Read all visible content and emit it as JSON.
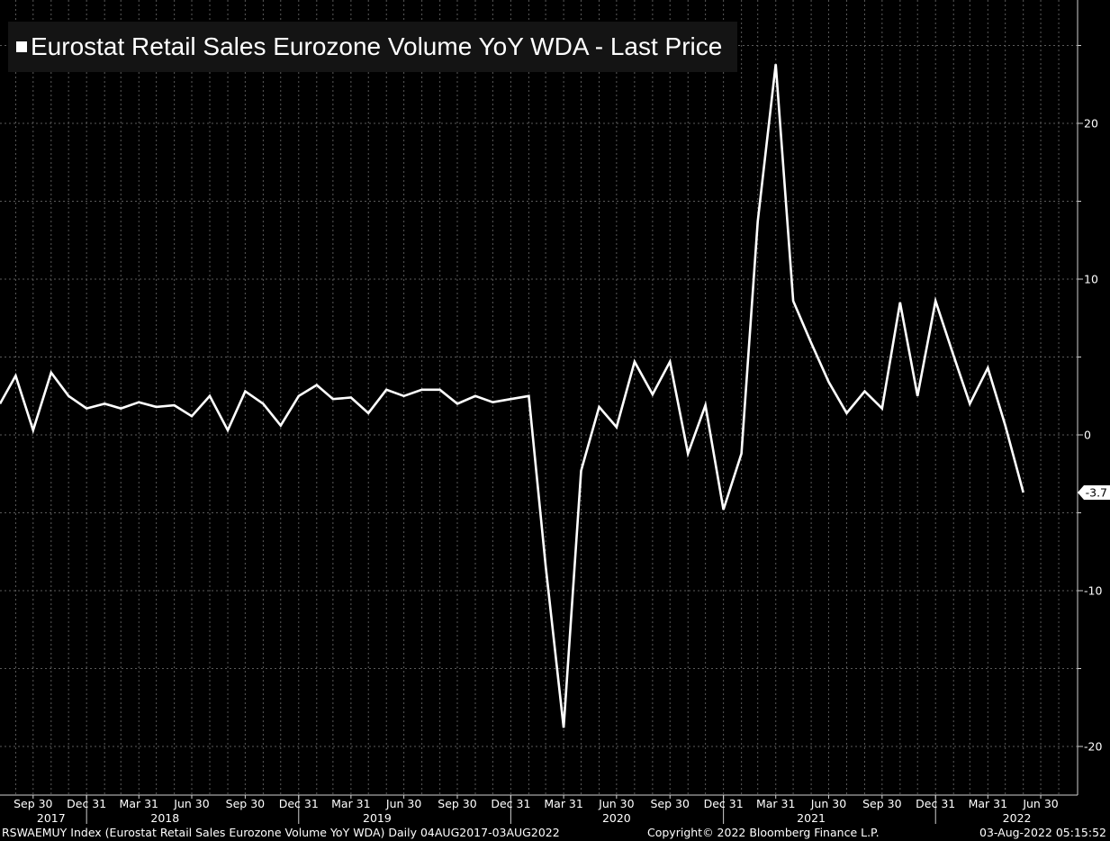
{
  "chart_data": {
    "type": "line",
    "title": "Eurostat Retail Sales Eurozone Volume YoY WDA - Last Price",
    "last_value_label": "-3.7",
    "colors": {
      "background": "#000000",
      "line": "#ffffff",
      "grid": "#5a5a5a"
    },
    "grid": true,
    "legend_position": "top-left",
    "ylim": [
      -23,
      28
    ],
    "y_ticks": [
      {
        "value": 20,
        "label": "20"
      },
      {
        "value": 10,
        "label": "10"
      },
      {
        "value": 0,
        "label": "0"
      },
      {
        "value": -10,
        "label": "-10"
      },
      {
        "value": -20,
        "label": "-20"
      }
    ],
    "y_minor_ticks": [
      25,
      15,
      5,
      -5,
      -15
    ],
    "x_ticks": [
      {
        "label": "Sep 30",
        "date": "2017-09-30"
      },
      {
        "label": "Dec 31",
        "date": "2017-12-31"
      },
      {
        "label": "Mar 31",
        "date": "2018-03-31"
      },
      {
        "label": "Jun 30",
        "date": "2018-06-30"
      },
      {
        "label": "Sep 30",
        "date": "2018-09-30"
      },
      {
        "label": "Dec 31",
        "date": "2018-12-31"
      },
      {
        "label": "Mar 31",
        "date": "2019-03-31"
      },
      {
        "label": "Jun 30",
        "date": "2019-06-30"
      },
      {
        "label": "Sep 30",
        "date": "2019-09-30"
      },
      {
        "label": "Dec 31",
        "date": "2019-12-31"
      },
      {
        "label": "Mar 31",
        "date": "2020-03-31"
      },
      {
        "label": "Jun 30",
        "date": "2020-06-30"
      },
      {
        "label": "Sep 30",
        "date": "2020-09-30"
      },
      {
        "label": "Dec 31",
        "date": "2020-12-31"
      },
      {
        "label": "Mar 31",
        "date": "2021-03-31"
      },
      {
        "label": "Jun 30",
        "date": "2021-06-30"
      },
      {
        "label": "Sep 30",
        "date": "2021-09-30"
      },
      {
        "label": "Dec 31",
        "date": "2021-12-31"
      },
      {
        "label": "Mar 31",
        "date": "2022-03-31"
      },
      {
        "label": "Jun 30",
        "date": "2022-06-30"
      }
    ],
    "year_labels": [
      {
        "label": "2017",
        "date": "2017-10-31"
      },
      {
        "label": "2018",
        "date": "2018-05-15"
      },
      {
        "label": "2019",
        "date": "2019-05-15"
      },
      {
        "label": "2020",
        "date": "2020-06-30"
      },
      {
        "label": "2021",
        "date": "2021-05-31"
      },
      {
        "label": "2022",
        "date": "2022-05-20"
      }
    ],
    "year_separators": [
      "2017-12-31",
      "2018-12-31",
      "2019-12-31",
      "2020-12-31",
      "2021-12-31"
    ],
    "x_range": [
      "2017-08-04",
      "2022-08-03"
    ],
    "series": [
      {
        "name": "Eurostat Retail Sales Eurozone Volume YoY WDA - Last Price",
        "points": [
          [
            "2017-08-04",
            2.0
          ],
          [
            "2017-08-31",
            3.8
          ],
          [
            "2017-09-30",
            0.3
          ],
          [
            "2017-10-31",
            4.0
          ],
          [
            "2017-11-30",
            2.5
          ],
          [
            "2017-12-31",
            1.7
          ],
          [
            "2018-01-31",
            2.0
          ],
          [
            "2018-02-28",
            1.7
          ],
          [
            "2018-03-31",
            2.1
          ],
          [
            "2018-04-30",
            1.8
          ],
          [
            "2018-05-31",
            1.9
          ],
          [
            "2018-06-30",
            1.2
          ],
          [
            "2018-07-31",
            2.5
          ],
          [
            "2018-08-31",
            0.3
          ],
          [
            "2018-09-30",
            2.8
          ],
          [
            "2018-10-31",
            2.0
          ],
          [
            "2018-11-30",
            0.6
          ],
          [
            "2018-12-31",
            2.5
          ],
          [
            "2019-01-31",
            3.2
          ],
          [
            "2019-02-28",
            2.3
          ],
          [
            "2019-03-31",
            2.4
          ],
          [
            "2019-04-30",
            1.4
          ],
          [
            "2019-05-31",
            2.9
          ],
          [
            "2019-06-30",
            2.5
          ],
          [
            "2019-07-31",
            2.9
          ],
          [
            "2019-08-31",
            2.9
          ],
          [
            "2019-09-30",
            2.0
          ],
          [
            "2019-10-31",
            2.5
          ],
          [
            "2019-11-30",
            2.1
          ],
          [
            "2019-12-31",
            2.3
          ],
          [
            "2020-01-31",
            2.5
          ],
          [
            "2020-02-29",
            -8.4
          ],
          [
            "2020-03-31",
            -18.8
          ],
          [
            "2020-04-30",
            -2.3
          ],
          [
            "2020-05-31",
            1.8
          ],
          [
            "2020-06-30",
            0.5
          ],
          [
            "2020-07-31",
            4.7
          ],
          [
            "2020-08-31",
            2.6
          ],
          [
            "2020-09-30",
            4.7
          ],
          [
            "2020-10-31",
            -1.2
          ],
          [
            "2020-11-30",
            1.9
          ],
          [
            "2020-12-31",
            -4.8
          ],
          [
            "2021-01-31",
            -1.2
          ],
          [
            "2021-02-28",
            13.7
          ],
          [
            "2021-03-31",
            23.8
          ],
          [
            "2021-04-30",
            8.6
          ],
          [
            "2021-05-31",
            5.9
          ],
          [
            "2021-06-30",
            3.4
          ],
          [
            "2021-07-31",
            1.4
          ],
          [
            "2021-08-31",
            2.8
          ],
          [
            "2021-09-30",
            1.7
          ],
          [
            "2021-10-31",
            8.5
          ],
          [
            "2021-11-30",
            2.5
          ],
          [
            "2021-12-31",
            8.6
          ],
          [
            "2022-01-31",
            5.1
          ],
          [
            "2022-02-28",
            2.0
          ],
          [
            "2022-03-31",
            4.3
          ],
          [
            "2022-04-30",
            0.6
          ],
          [
            "2022-05-31",
            -3.7
          ]
        ]
      }
    ]
  },
  "footer": {
    "left": "RSWAEMUY Index (Eurostat Retail Sales Eurozone Volume YoY WDA)  Daily 04AUG2017-03AUG2022",
    "center": "Copyright© 2022 Bloomberg Finance L.P.",
    "right": "03-Aug-2022 05:15:52"
  }
}
